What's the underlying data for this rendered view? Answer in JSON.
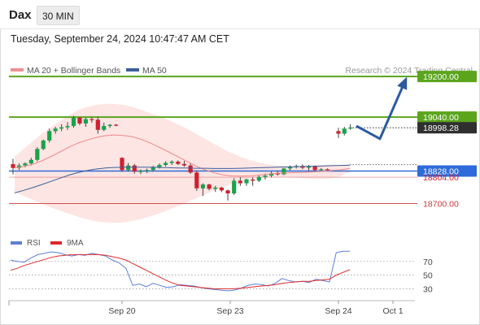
{
  "header": {
    "symbol": "Dax",
    "interval": "30 MIN",
    "datetime": "Tuesday, September 24, 2024 10:47:47 AM CET"
  },
  "legend": {
    "ma20_label": "MA 20 + Bollinger Bands",
    "ma50_label": "MA 50",
    "credit": "Research © 2024 Trading Central"
  },
  "rsi_legend": {
    "rsi_label": "RSI",
    "ma_label": "9MA"
  },
  "colors": {
    "up": "#1aa34a",
    "down": "#d0202f",
    "bollinger_fill": "#fde0de",
    "ma20": "#e98a8a",
    "ma50": "#3a5f9b",
    "target": "#5aa51c",
    "pivot": "#2f6bd8",
    "support": "#c93a3a",
    "arrow": "#2c5aa0",
    "rsi": "#5f7fd6",
    "rsi_ma": "#e02a2a"
  },
  "chart_data": [
    {
      "type": "candlestick",
      "title": "",
      "x_ticks": [
        "Sep 20",
        "Sep 23",
        "Sep 24",
        "Oct 1"
      ],
      "ylim": [
        18590,
        19245
      ],
      "levels": [
        {
          "label": "19200.00",
          "value": 19200,
          "role": "target"
        },
        {
          "label": "19040.00",
          "value": 19040,
          "role": "target"
        },
        {
          "label": "18998.28",
          "value": 18998.28,
          "role": "last-price"
        },
        {
          "label": "18828.00",
          "value": 18828,
          "role": "pivot"
        },
        {
          "label": "18804.00",
          "value": 18804,
          "role": "prior-close"
        },
        {
          "label": "18700.00",
          "value": 18700,
          "role": "support"
        }
      ],
      "candles": [
        [
          18855,
          18876,
          18815,
          18840
        ],
        [
          18840,
          18858,
          18832,
          18850
        ],
        [
          18850,
          18862,
          18843,
          18858
        ],
        [
          18858,
          18880,
          18850,
          18872
        ],
        [
          18872,
          18922,
          18866,
          18915
        ],
        [
          18915,
          18952,
          18910,
          18948
        ],
        [
          18948,
          18995,
          18940,
          18985
        ],
        [
          18985,
          19002,
          18975,
          18995
        ],
        [
          18995,
          19012,
          18985,
          19000
        ],
        [
          19000,
          19020,
          18990,
          19005
        ],
        [
          19005,
          19045,
          18998,
          19038
        ],
        [
          19038,
          19040,
          19008,
          19015
        ],
        [
          19015,
          19038,
          19002,
          19032
        ],
        [
          19032,
          19040,
          19018,
          19030
        ],
        [
          19030,
          19042,
          18975,
          18990
        ],
        [
          18990,
          19018,
          18985,
          19005
        ],
        [
          19005,
          19013,
          18998,
          19010
        ],
        [
          19010,
          19013,
          19004,
          19008
        ],
        [
          18880,
          18882,
          18825,
          18832
        ],
        [
          18832,
          18860,
          18826,
          18850
        ],
        [
          18850,
          18856,
          18818,
          18826
        ],
        [
          18826,
          18834,
          18816,
          18828
        ],
        [
          18828,
          18838,
          18820,
          18832
        ],
        [
          18832,
          18848,
          18826,
          18844
        ],
        [
          18844,
          18858,
          18838,
          18852
        ],
        [
          18852,
          18866,
          18846,
          18860
        ],
        [
          18860,
          18870,
          18852,
          18865
        ],
        [
          18865,
          18870,
          18852,
          18856
        ],
        [
          18856,
          18868,
          18845,
          18850
        ],
        [
          18850,
          18858,
          18817,
          18822
        ],
        [
          18822,
          18830,
          18750,
          18760
        ],
        [
          18760,
          18780,
          18730,
          18775
        ],
        [
          18775,
          18778,
          18752,
          18758
        ],
        [
          18758,
          18770,
          18746,
          18763
        ],
        [
          18763,
          18766,
          18745,
          18752
        ],
        [
          18752,
          18755,
          18712,
          18740
        ],
        [
          18740,
          18800,
          18734,
          18790
        ],
        [
          18790,
          18804,
          18770,
          18780
        ],
        [
          18780,
          18798,
          18770,
          18795
        ],
        [
          18795,
          18803,
          18770,
          18790
        ],
        [
          18790,
          18810,
          18785,
          18805
        ],
        [
          18805,
          18818,
          18795,
          18810
        ],
        [
          18810,
          18826,
          18803,
          18819
        ],
        [
          18819,
          18829,
          18810,
          18815
        ],
        [
          18815,
          18840,
          18812,
          18838
        ],
        [
          18838,
          18850,
          18830,
          18845
        ],
        [
          18845,
          18853,
          18838,
          18848
        ],
        [
          18848,
          18855,
          18835,
          18841
        ],
        [
          18841,
          18852,
          18830,
          18848
        ],
        [
          18848,
          18850,
          18826,
          18832
        ],
        [
          18832,
          18840,
          18828,
          18835
        ],
        [
          18835,
          18838,
          18830,
          18833
        ],
        [
          18985,
          18998,
          18958,
          18975
        ],
        [
          18975,
          19002,
          18968,
          18995
        ],
        [
          18995,
          19012,
          18990,
          18999
        ]
      ],
      "ma20": [
        18840,
        18846,
        18855,
        18868,
        18885,
        18903,
        18922,
        18938,
        18950,
        18960,
        18967,
        18970,
        18968,
        18963,
        18952,
        18938,
        18921,
        18903,
        18885,
        18866,
        18848,
        18833,
        18821,
        18813,
        18809,
        18808,
        18809,
        18812,
        18816,
        18819,
        18821,
        18822,
        18823,
        18825,
        18827,
        18830,
        18833,
        18838
      ],
      "bb_upper": [
        18885,
        18915,
        18945,
        18975,
        19000,
        19025,
        19048,
        19068,
        19080,
        19088,
        19092,
        19092,
        19088,
        19080,
        19068,
        19055,
        19042,
        19028,
        19012,
        18995,
        18975,
        18955,
        18935,
        18915,
        18898,
        18883,
        18871,
        18861,
        18854,
        18850,
        18848,
        18847,
        18848,
        18850,
        18852,
        18853,
        18852,
        18850
      ],
      "bb_lower": [
        18745,
        18730,
        18715,
        18700,
        18685,
        18672,
        18660,
        18648,
        18638,
        18630,
        18626,
        18624,
        18626,
        18632,
        18640,
        18650,
        18662,
        18676,
        18690,
        18705,
        18720,
        18735,
        18750,
        18765,
        18778,
        18790,
        18798,
        18803,
        18805,
        18805,
        18804,
        18802,
        18800,
        18798,
        18798,
        18800,
        18808,
        18825
      ],
      "ma50": [
        18742,
        18752,
        18763,
        18775,
        18787,
        18800,
        18812,
        18822,
        18830,
        18836,
        18840,
        18842,
        18843,
        18843,
        18843,
        18843,
        18842,
        18841,
        18840,
        18840,
        18839,
        18839,
        18838,
        18838,
        18838,
        18839,
        18840,
        18841,
        18842,
        18843,
        18844,
        18845,
        18846,
        18847,
        18848,
        18849,
        18850,
        18851
      ]
    },
    {
      "type": "line",
      "title": "",
      "yticks": [
        70,
        50,
        30
      ],
      "ylim": [
        15,
        90
      ],
      "rsi": [
        72,
        70,
        69,
        75,
        80,
        82,
        84,
        83,
        80,
        78,
        80,
        79,
        82,
        80,
        78,
        72,
        68,
        60,
        35,
        37,
        33,
        38,
        35,
        32,
        33,
        36,
        35,
        34,
        32,
        30,
        29,
        28,
        27,
        28,
        31,
        35,
        37,
        36,
        34,
        38,
        45,
        42,
        40,
        41,
        39,
        44,
        42,
        40,
        83,
        85,
        85
      ],
      "rsi_ma": [
        57,
        60,
        64,
        67,
        70,
        73,
        76,
        78,
        79,
        80,
        80,
        80,
        80,
        80,
        79,
        77,
        75,
        72,
        67,
        62,
        57,
        52,
        47,
        42,
        38,
        35,
        34,
        33,
        32,
        31,
        30,
        30,
        30,
        30,
        31,
        32,
        33,
        34,
        35,
        36,
        38,
        39,
        40,
        41,
        41,
        42,
        43,
        44,
        50,
        54,
        58
      ]
    }
  ]
}
